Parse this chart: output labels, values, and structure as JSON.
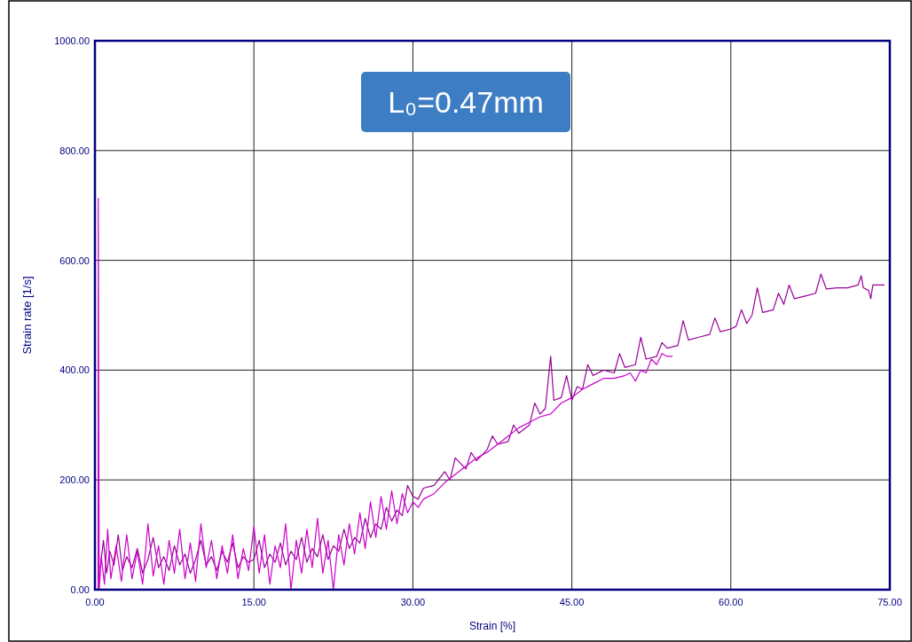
{
  "chart_data": {
    "type": "line",
    "xlabel": "Strain [%]",
    "ylabel": "Strain rate [1/s]",
    "annotations": [
      "L₀=0.47mm"
    ],
    "xlim": [
      0,
      75
    ],
    "xticks": [
      {
        "value": 0,
        "label": "0.00"
      },
      {
        "value": 15,
        "label": "15.00"
      },
      {
        "value": 30,
        "label": "30.00"
      },
      {
        "value": 45,
        "label": "45.00"
      },
      {
        "value": 60,
        "label": "60.00"
      },
      {
        "value": 75,
        "label": "75.00"
      }
    ],
    "ylim": [
      0,
      1000
    ],
    "yticks": [
      {
        "value": 0,
        "label": "0.00"
      },
      {
        "value": 200,
        "label": "200.00"
      },
      {
        "value": 400,
        "label": "400.00"
      },
      {
        "value": 600,
        "label": "600.00"
      },
      {
        "value": 800,
        "label": "800.00"
      },
      {
        "value": 1000,
        "label": "1000.00"
      }
    ],
    "grid": true,
    "marker": "none",
    "line_style": "solid",
    "series": [
      {
        "color": "#990099",
        "x": [
          0.5,
          0.8,
          1.1,
          1.4,
          1.8,
          2.2,
          2.6,
          3,
          3.5,
          4,
          4.5,
          5,
          5.5,
          6,
          6.5,
          7,
          7.5,
          8,
          8.5,
          9,
          9.5,
          10,
          10.5,
          11,
          11.5,
          12,
          12.5,
          13,
          13.5,
          14,
          14.5,
          15,
          15.5,
          16,
          16.5,
          17,
          17.5,
          18,
          18.5,
          19,
          19.5,
          20,
          20.5,
          21,
          21.5,
          22,
          22.5,
          23,
          23.5,
          24,
          24.5,
          25,
          25.5,
          26,
          26.5,
          27,
          27.5,
          28,
          28.5,
          29,
          29.5,
          30,
          30.5,
          31,
          32,
          33,
          33.5,
          34,
          35,
          35.5,
          36,
          37,
          37.5,
          38,
          39,
          39.5,
          40,
          41,
          41.5,
          42,
          42.5,
          43,
          43.3,
          44,
          44.5,
          45,
          45.5,
          46,
          46.5,
          47,
          48,
          49,
          49.5,
          50,
          51,
          51.5,
          52,
          53,
          53.5,
          54,
          55,
          55.5,
          56,
          57,
          58,
          58.5,
          59,
          60,
          60.5,
          61,
          61.5,
          62,
          62.5,
          63,
          64,
          64.5,
          65,
          65.5,
          66,
          67,
          68,
          68.5,
          69,
          70,
          71,
          72,
          72.3,
          72.5,
          73,
          73.2,
          73.4,
          74.5
        ],
        "values": [
          40,
          90,
          30,
          70,
          45,
          100,
          35,
          60,
          40,
          75,
          30,
          55,
          95,
          40,
          60,
          35,
          80,
          45,
          65,
          30,
          55,
          90,
          45,
          60,
          35,
          70,
          50,
          85,
          40,
          60,
          50,
          55,
          90,
          40,
          65,
          50,
          85,
          45,
          70,
          55,
          95,
          50,
          75,
          60,
          100,
          55,
          80,
          70,
          110,
          75,
          95,
          85,
          130,
          95,
          120,
          110,
          150,
          125,
          145,
          135,
          190,
          170,
          165,
          185,
          190,
          215,
          200,
          240,
          220,
          250,
          235,
          255,
          280,
          265,
          270,
          300,
          285,
          300,
          340,
          320,
          330,
          425,
          345,
          350,
          390,
          345,
          370,
          365,
          410,
          390,
          400,
          395,
          430,
          405,
          410,
          460,
          420,
          425,
          450,
          440,
          445,
          490,
          455,
          460,
          465,
          495,
          470,
          475,
          480,
          510,
          485,
          500,
          550,
          505,
          510,
          540,
          520,
          555,
          530,
          535,
          540,
          575,
          548,
          550,
          550,
          555,
          572,
          550,
          545,
          530,
          555,
          555
        ]
      },
      {
        "color": "#cc00cc",
        "x": [
          0.3,
          0.32,
          0.4,
          0.6,
          0.9,
          1.2,
          1.5,
          2,
          2.5,
          3,
          3.5,
          4,
          4.5,
          5,
          5.5,
          6,
          6.5,
          7,
          7.5,
          8,
          8.5,
          9,
          9.5,
          10,
          10.5,
          11,
          11.5,
          12,
          12.5,
          13,
          13.5,
          14,
          14.5,
          15,
          15.5,
          16,
          16.5,
          17,
          17.5,
          18,
          18.5,
          19,
          19.5,
          20,
          20.5,
          21,
          21.5,
          22,
          22.5,
          23,
          23.5,
          24,
          24.5,
          25,
          25.5,
          26,
          26.5,
          27,
          27.5,
          28,
          28.5,
          29,
          29.5,
          30,
          30.5,
          31,
          32,
          33,
          34,
          35,
          36,
          37,
          38,
          39,
          40,
          41,
          42,
          43,
          44,
          45,
          46,
          47,
          48,
          49,
          50,
          50.5,
          51,
          51.5,
          52,
          52.5,
          53,
          53.5,
          54,
          54.5
        ],
        "values": [
          0,
          713,
          0,
          60,
          10,
          110,
          20,
          80,
          15,
          100,
          20,
          70,
          10,
          120,
          25,
          80,
          10,
          90,
          30,
          110,
          20,
          85,
          15,
          120,
          40,
          90,
          20,
          80,
          30,
          100,
          20,
          75,
          35,
          115,
          30,
          100,
          10,
          80,
          40,
          120,
          0,
          90,
          30,
          110,
          40,
          130,
          30,
          90,
          0,
          100,
          45,
          120,
          65,
          140,
          75,
          160,
          95,
          170,
          110,
          180,
          120,
          175,
          140,
          160,
          150,
          165,
          175,
          195,
          210,
          225,
          240,
          250,
          265,
          280,
          295,
          305,
          315,
          320,
          340,
          350,
          365,
          375,
          385,
          385,
          390,
          395,
          380,
          400,
          395,
          420,
          410,
          430,
          425,
          425
        ]
      }
    ]
  }
}
